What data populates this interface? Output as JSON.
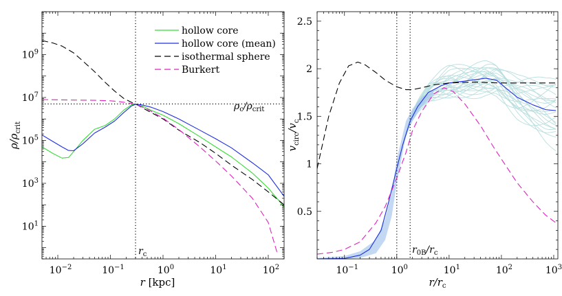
{
  "chart_data": [
    {
      "type": "line",
      "xscale": "log",
      "yscale": "log",
      "xlim": [
        0.005,
        200
      ],
      "ylim": [
        0.3,
        100000000000
      ],
      "xlabel": "r [kpc]",
      "ylabel": "ρ/ρcrit",
      "xticks": [
        {
          "value": 0.01,
          "base": "10",
          "exp": "−2"
        },
        {
          "value": 0.1,
          "base": "10",
          "exp": "−1"
        },
        {
          "value": 1,
          "base": "10",
          "exp": "0"
        },
        {
          "value": 10,
          "base": "10",
          "exp": "1"
        },
        {
          "value": 100,
          "base": "10",
          "exp": "2"
        }
      ],
      "yticks": [
        {
          "value": 10,
          "base": "10",
          "exp": "1"
        },
        {
          "value": 1000,
          "base": "10",
          "exp": "3"
        },
        {
          "value": 100000,
          "base": "10",
          "exp": "5"
        },
        {
          "value": 10000000,
          "base": "10",
          "exp": "7"
        },
        {
          "value": 1000000000,
          "base": "10",
          "exp": "9"
        }
      ],
      "legend_position": "top-right",
      "reference_lines": [
        {
          "orientation": "vertical",
          "value": 0.3,
          "label": "rc",
          "style": "dotted"
        },
        {
          "orientation": "horizontal",
          "value": 5000000,
          "label": "ρc/ρcrit",
          "style": "dotted"
        }
      ],
      "series": [
        {
          "name": "hollow core",
          "color": "#33dd33",
          "dash": "solid",
          "x": [
            0.005,
            0.008,
            0.012,
            0.016,
            0.02,
            0.03,
            0.05,
            0.08,
            0.12,
            0.18,
            0.25,
            0.3,
            0.4,
            0.6,
            1,
            2,
            5,
            10,
            20,
            50,
            100,
            200
          ],
          "y": [
            50000,
            25000,
            15000,
            16000,
            30000,
            100000,
            330000,
            500000,
            1000000,
            2600000,
            4500000,
            5000000,
            4000000,
            2500000,
            1500000,
            600000,
            150000,
            50000,
            17000,
            3000,
            600,
            80
          ]
        },
        {
          "name": "hollow core (mean)",
          "color": "#1f2fe0",
          "dash": "solid",
          "x": [
            0.005,
            0.008,
            0.012,
            0.016,
            0.02,
            0.03,
            0.05,
            0.08,
            0.12,
            0.18,
            0.25,
            0.3,
            0.4,
            0.6,
            1,
            2,
            5,
            10,
            20,
            50,
            100,
            200
          ],
          "y": [
            180000,
            90000,
            50000,
            34000,
            33000,
            70000,
            220000,
            420000,
            800000,
            2000000,
            4000000,
            4800000,
            4500000,
            3500000,
            2200000,
            1000000,
            300000,
            120000,
            45000,
            9000,
            2500,
            250
          ]
        },
        {
          "name": "isothermal sphere",
          "color": "#000000",
          "dash": "9 5",
          "x": [
            0.005,
            0.008,
            0.012,
            0.02,
            0.03,
            0.05,
            0.08,
            0.12,
            0.18,
            0.25,
            0.3,
            0.5,
            1,
            2,
            5,
            10,
            20,
            50,
            100,
            200
          ],
          "y": [
            4500000000,
            3500000000,
            2500000000,
            1200000000,
            500000000,
            160000000,
            50000000,
            20000000,
            9000000,
            6000000,
            5000000,
            2500000,
            1000000,
            300000,
            80000,
            25000,
            7000,
            1500,
            400,
            100
          ]
        },
        {
          "name": "Burkert",
          "color": "#e020c0",
          "dash": "9 5",
          "x": [
            0.005,
            0.01,
            0.02,
            0.05,
            0.1,
            0.15,
            0.2,
            0.3,
            0.5,
            1,
            2,
            5,
            10,
            20,
            50,
            100,
            150
          ],
          "y": [
            8000000,
            7800000,
            7600000,
            7400000,
            7000000,
            6400000,
            5800000,
            4800000,
            2900000,
            1100000,
            320000,
            50000,
            11000,
            2200,
            200,
            15,
            0.5
          ]
        }
      ]
    },
    {
      "type": "line",
      "xscale": "log",
      "yscale": "linear",
      "xlim": [
        0.03,
        1200
      ],
      "ylim": [
        0,
        2.6
      ],
      "xlabel": "r/rc",
      "ylabel": "vcirc/vc",
      "xticks": [
        {
          "value": 0.1,
          "base": "10",
          "exp": "−1"
        },
        {
          "value": 1,
          "base": "10",
          "exp": "0"
        },
        {
          "value": 10,
          "base": "10",
          "exp": "1"
        },
        {
          "value": 100,
          "base": "10",
          "exp": "2"
        },
        {
          "value": 1000,
          "base": "10",
          "exp": "3"
        }
      ],
      "yticks": [
        {
          "value": 0.5,
          "label": "0.5"
        },
        {
          "value": 1,
          "label": "1"
        },
        {
          "value": 1.5,
          "label": "1.5"
        },
        {
          "value": 2,
          "label": "2"
        },
        {
          "value": 2.5,
          "label": "2.5"
        }
      ],
      "reference_lines": [
        {
          "orientation": "vertical",
          "value": 1,
          "label": "",
          "style": "dotted"
        },
        {
          "orientation": "vertical",
          "value": 1.8,
          "label": "r0B/rc",
          "style": "dotted"
        }
      ],
      "band": {
        "color": "#a8c8ee",
        "x": [
          0.03,
          0.1,
          0.2,
          0.4,
          0.6,
          0.8,
          1,
          1.5,
          2,
          3,
          5
        ],
        "low": [
          0,
          0,
          0.01,
          0.06,
          0.2,
          0.45,
          0.8,
          1.3,
          1.45,
          1.6,
          1.72
        ],
        "high": [
          0.01,
          0.03,
          0.08,
          0.2,
          0.42,
          0.7,
          1.05,
          1.45,
          1.58,
          1.7,
          1.78
        ]
      },
      "bundle": {
        "color": "#b9dede",
        "count": 24,
        "x_start": 0.03,
        "x_end": 1100
      },
      "series": [
        {
          "name": "hollow core (mean)",
          "color": "#1f2fe0",
          "dash": "solid",
          "x": [
            0.03,
            0.1,
            0.2,
            0.3,
            0.5,
            0.7,
            1,
            1.3,
            1.8,
            2.5,
            4,
            7,
            10,
            20,
            50,
            80,
            120,
            200,
            400,
            700,
            1100
          ],
          "y": [
            0,
            0.005,
            0.04,
            0.1,
            0.3,
            0.6,
            0.95,
            1.2,
            1.45,
            1.6,
            1.75,
            1.82,
            1.85,
            1.87,
            1.9,
            1.88,
            1.8,
            1.7,
            1.62,
            1.57,
            1.56
          ]
        },
        {
          "name": "isothermal sphere",
          "color": "#000000",
          "dash": "9 5",
          "x": [
            0.03,
            0.05,
            0.08,
            0.12,
            0.18,
            0.25,
            0.4,
            0.6,
            1,
            1.5,
            2,
            3,
            5,
            10,
            30,
            100,
            300,
            1100
          ],
          "y": [
            0.95,
            1.5,
            1.85,
            2.03,
            2.07,
            2.04,
            1.96,
            1.88,
            1.81,
            1.78,
            1.78,
            1.8,
            1.83,
            1.85,
            1.86,
            1.85,
            1.85,
            1.85
          ]
        },
        {
          "name": "Burkert",
          "color": "#e020c0",
          "dash": "9 5",
          "x": [
            0.03,
            0.06,
            0.1,
            0.2,
            0.4,
            0.6,
            1,
            1.5,
            2,
            3,
            5,
            8,
            12,
            20,
            40,
            70,
            100,
            200,
            400,
            700,
            1100
          ],
          "y": [
            0.05,
            0.07,
            0.1,
            0.18,
            0.38,
            0.55,
            0.85,
            1.12,
            1.35,
            1.55,
            1.73,
            1.8,
            1.76,
            1.63,
            1.4,
            1.18,
            1.05,
            0.8,
            0.6,
            0.46,
            0.38
          ]
        }
      ]
    }
  ]
}
